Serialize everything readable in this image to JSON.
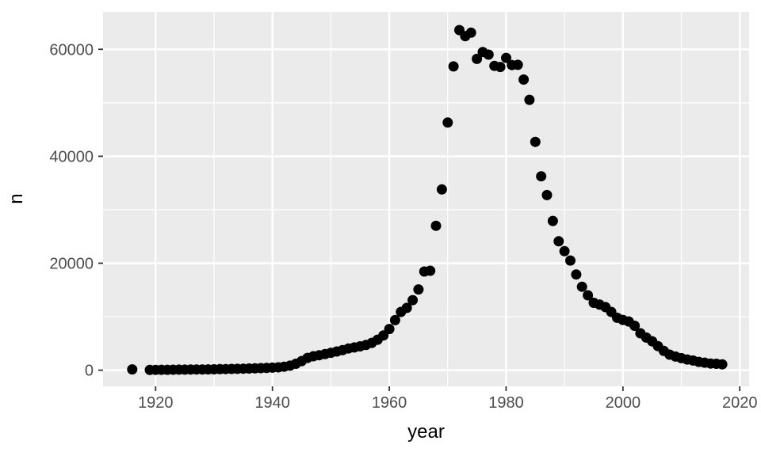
{
  "chart_data": {
    "type": "scatter",
    "title": "",
    "xlabel": "year",
    "ylabel": "n",
    "x": [
      1916,
      1919,
      1920,
      1921,
      1922,
      1923,
      1924,
      1925,
      1926,
      1927,
      1928,
      1929,
      1930,
      1931,
      1932,
      1933,
      1934,
      1935,
      1936,
      1937,
      1938,
      1939,
      1940,
      1941,
      1942,
      1943,
      1944,
      1945,
      1946,
      1947,
      1948,
      1949,
      1950,
      1951,
      1952,
      1953,
      1954,
      1955,
      1956,
      1957,
      1958,
      1959,
      1960,
      1961,
      1962,
      1963,
      1964,
      1965,
      1966,
      1967,
      1968,
      1969,
      1970,
      1971,
      1972,
      1973,
      1974,
      1975,
      1976,
      1977,
      1978,
      1979,
      1980,
      1981,
      1982,
      1983,
      1984,
      1985,
      1986,
      1987,
      1988,
      1989,
      1990,
      1991,
      1992,
      1993,
      1994,
      1995,
      1996,
      1997,
      1998,
      1999,
      2000,
      2001,
      2002,
      2003,
      2004,
      2005,
      2006,
      2007,
      2008,
      2009,
      2010,
      2011,
      2012,
      2013,
      2014,
      2015,
      2016,
      2017
    ],
    "y": [
      150,
      50,
      60,
      70,
      80,
      90,
      100,
      110,
      120,
      130,
      140,
      150,
      170,
      190,
      210,
      230,
      250,
      280,
      310,
      340,
      380,
      420,
      470,
      530,
      650,
      850,
      1200,
      1700,
      2300,
      2600,
      2800,
      3000,
      3250,
      3500,
      3750,
      4050,
      4250,
      4450,
      4700,
      5100,
      5700,
      6500,
      7700,
      9350,
      10900,
      11650,
      13100,
      15100,
      18450,
      18600,
      27000,
      33800,
      46300,
      56800,
      63600,
      62450,
      63100,
      58200,
      59500,
      59000,
      56900,
      56700,
      58400,
      57050,
      57100,
      54350,
      50550,
      42700,
      36250,
      32750,
      27900,
      24100,
      22250,
      20500,
      17900,
      15600,
      14000,
      12600,
      12250,
      11800,
      10900,
      9800,
      9400,
      9100,
      8300,
      6900,
      6100,
      5400,
      4500,
      3600,
      2900,
      2550,
      2250,
      2000,
      1800,
      1550,
      1400,
      1250,
      1200,
      1100
    ],
    "x_ticks": {
      "values": [
        1920,
        1940,
        1960,
        1980,
        2000,
        2020
      ],
      "labels": [
        "1920",
        "1940",
        "1960",
        "1980",
        "2000",
        "2020"
      ]
    },
    "y_ticks": {
      "values": [
        0,
        20000,
        40000,
        60000
      ],
      "labels": [
        "0",
        "20000",
        "40000",
        "60000"
      ]
    },
    "x_minor": [
      1930,
      1950,
      1970,
      1990,
      2010
    ],
    "y_minor": [
      10000,
      30000,
      50000
    ],
    "xlim": [
      1911.0,
      2021.6
    ],
    "ylim": [
      -3020,
      67000
    ],
    "grid": "on",
    "legend": "none",
    "point_radius": 6.5,
    "colors": {
      "point": "#000000",
      "panel_bg": "#EBEBEB",
      "grid_major": "#FFFFFF",
      "grid_minor": "#FFFFFF",
      "tick_mark": "#333333",
      "tick_label": "#4D4D4D",
      "axis_title": "#000000",
      "outer_bg": "#FFFFFF"
    }
  }
}
